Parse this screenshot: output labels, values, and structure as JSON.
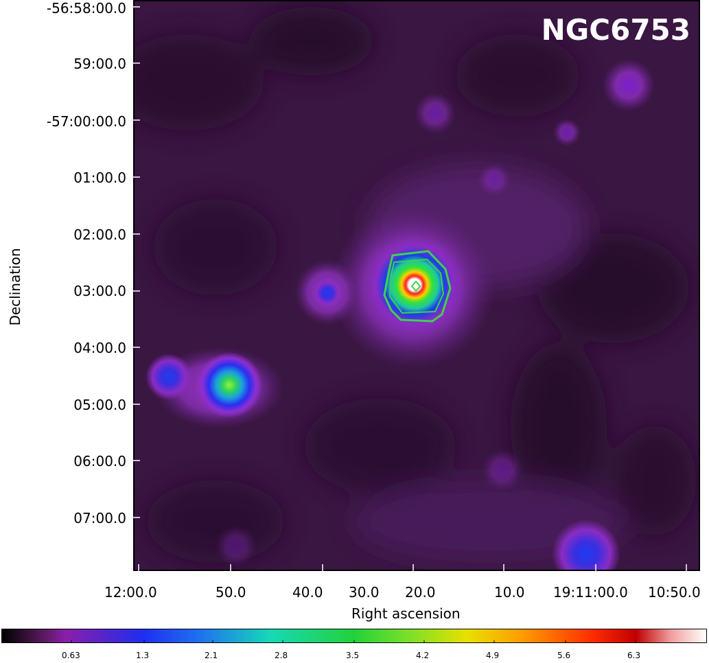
{
  "image_title": "NGC6753",
  "axes": {
    "xlabel": "Right ascension",
    "ylabel": "Declination",
    "y_ticks": [
      "-56:58:00.0",
      "59:00.0",
      "-57:00:00.0",
      "01:00.0",
      "02:00.0",
      "03:00.0",
      "04:00.0",
      "05:00.0",
      "06:00.0",
      "07:00.0"
    ],
    "x_ticks": [
      "12:00.0",
      "50.0",
      "40.0",
      "30.0",
      "20.0",
      "10.0",
      "19:11:00.0",
      "10:50.0"
    ]
  },
  "colorbar": {
    "tick_labels": [
      "0.63",
      "1.3",
      "2.1",
      "2.8",
      "3.5",
      "4.2",
      "4.9",
      "5.6",
      "6.3"
    ]
  },
  "colors": {
    "background": "#2a0e2e",
    "contour": "#3fd24a"
  }
}
